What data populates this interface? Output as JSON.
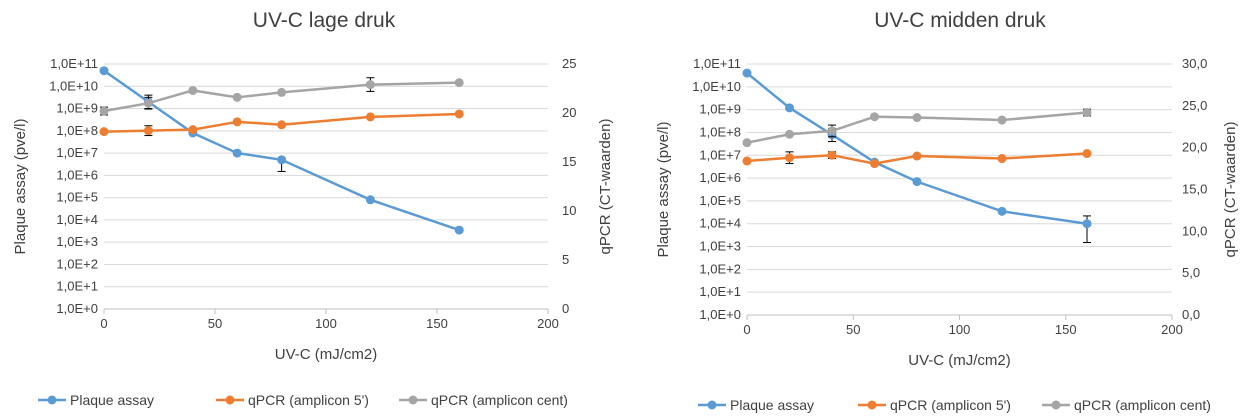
{
  "chart_data": [
    {
      "type": "line",
      "title": "UV-C lage druk",
      "xlabel": "UV-C (mJ/cm2)",
      "ylabel": "Plaque assay (pve/l)",
      "y2label": "qPCR (CT-waarden)",
      "xlim": [
        0,
        200
      ],
      "xticks": [
        "0",
        "50",
        "100",
        "150",
        "200"
      ],
      "ylim_log": [
        0,
        11
      ],
      "yscale": "log",
      "yticks": [
        "1,0E+0",
        "1,0E+1",
        "1,0E+2",
        "1,0E+3",
        "1,0E+4",
        "1,0E+5",
        "1,0E+6",
        "1,0E+7",
        "1,0E+8",
        "1,0E+9",
        "1,0E+10",
        "1,0E+11"
      ],
      "y2lim": [
        0,
        25
      ],
      "y2ticks": [
        "0",
        "5",
        "10",
        "15",
        "20",
        "25"
      ],
      "grid": true,
      "legend_position": "bottom",
      "series": [
        {
          "name": "Plaque assay",
          "axis": "left",
          "color": "#5b9bd5",
          "x": [
            0,
            20,
            40,
            60,
            80,
            120,
            160
          ],
          "y": [
            50000000000.0,
            2000000000.0,
            80000000.0,
            10000000.0,
            5000000.0,
            80000.0,
            3500.0
          ],
          "err_hi": [
            null,
            4000000000.0,
            null,
            null,
            5000000.0,
            null,
            null
          ],
          "err_lo": [
            null,
            1000000000.0,
            null,
            null,
            1500000.0,
            null,
            null
          ]
        },
        {
          "name": "qPCR (amplicon 5')",
          "axis": "right",
          "color": "#ed7d31",
          "x": [
            0,
            20,
            40,
            60,
            80,
            120,
            160
          ],
          "y": [
            18.1,
            18.2,
            18.3,
            19.1,
            18.8,
            19.6,
            19.9
          ],
          "err": [
            null,
            0.5,
            null,
            null,
            null,
            null,
            null
          ]
        },
        {
          "name": "qPCR (amplicon cent)",
          "axis": "right",
          "color": "#a5a5a5",
          "x": [
            0,
            20,
            40,
            60,
            80,
            120,
            160
          ],
          "y": [
            20.2,
            21.0,
            22.3,
            21.6,
            22.1,
            22.9,
            23.1
          ],
          "err": [
            0.4,
            0.6,
            null,
            null,
            null,
            0.7,
            null
          ]
        }
      ]
    },
    {
      "type": "line",
      "title": "UV-C midden druk",
      "xlabel": "UV-C (mJ/cm2)",
      "ylabel": "Plaque assay (pve/l)",
      "y2label": "qPCR (CT-waarden)",
      "xlim": [
        0,
        200
      ],
      "xticks": [
        "0",
        "50",
        "100",
        "150",
        "200"
      ],
      "ylim_log": [
        0,
        11
      ],
      "yscale": "log",
      "yticks": [
        "1,0E+0",
        "1,0E+1",
        "1,0E+2",
        "1,0E+3",
        "1,0E+4",
        "1,0E+5",
        "1,0E+6",
        "1,0E+7",
        "1,0E+8",
        "1,0E+9",
        "1,0E+10",
        "1,0E+11"
      ],
      "y2lim": [
        0,
        30
      ],
      "y2ticks": [
        "0,0",
        "5,0",
        "10,0",
        "15,0",
        "20,0",
        "25,0",
        "30,0"
      ],
      "grid": true,
      "legend_position": "bottom",
      "series": [
        {
          "name": "Plaque assay",
          "axis": "left",
          "color": "#5b9bd5",
          "x": [
            0,
            20,
            40,
            60,
            80,
            120,
            160
          ],
          "y": [
            40000000000.0,
            1200000000.0,
            80000000.0,
            5000000.0,
            700000.0,
            35000.0,
            10000.0
          ],
          "err_hi": [
            null,
            null,
            150000000.0,
            null,
            null,
            null,
            22000.0
          ],
          "err_lo": [
            null,
            null,
            40000000.0,
            null,
            null,
            null,
            1500.0
          ]
        },
        {
          "name": "qPCR (amplicon 5')",
          "axis": "right",
          "color": "#ed7d31",
          "x": [
            0,
            20,
            40,
            60,
            80,
            120,
            160
          ],
          "y": [
            18.4,
            18.8,
            19.1,
            18.1,
            19.0,
            18.7,
            19.3
          ],
          "err": [
            null,
            0.7,
            0.4,
            null,
            null,
            null,
            null
          ]
        },
        {
          "name": "qPCR (amplicon cent)",
          "axis": "right",
          "color": "#a5a5a5",
          "x": [
            0,
            20,
            40,
            60,
            80,
            120,
            160
          ],
          "y": [
            20.6,
            21.6,
            22.0,
            23.7,
            23.6,
            23.3,
            24.2
          ],
          "err": [
            null,
            null,
            0.7,
            null,
            null,
            null,
            0.4
          ]
        }
      ]
    }
  ]
}
